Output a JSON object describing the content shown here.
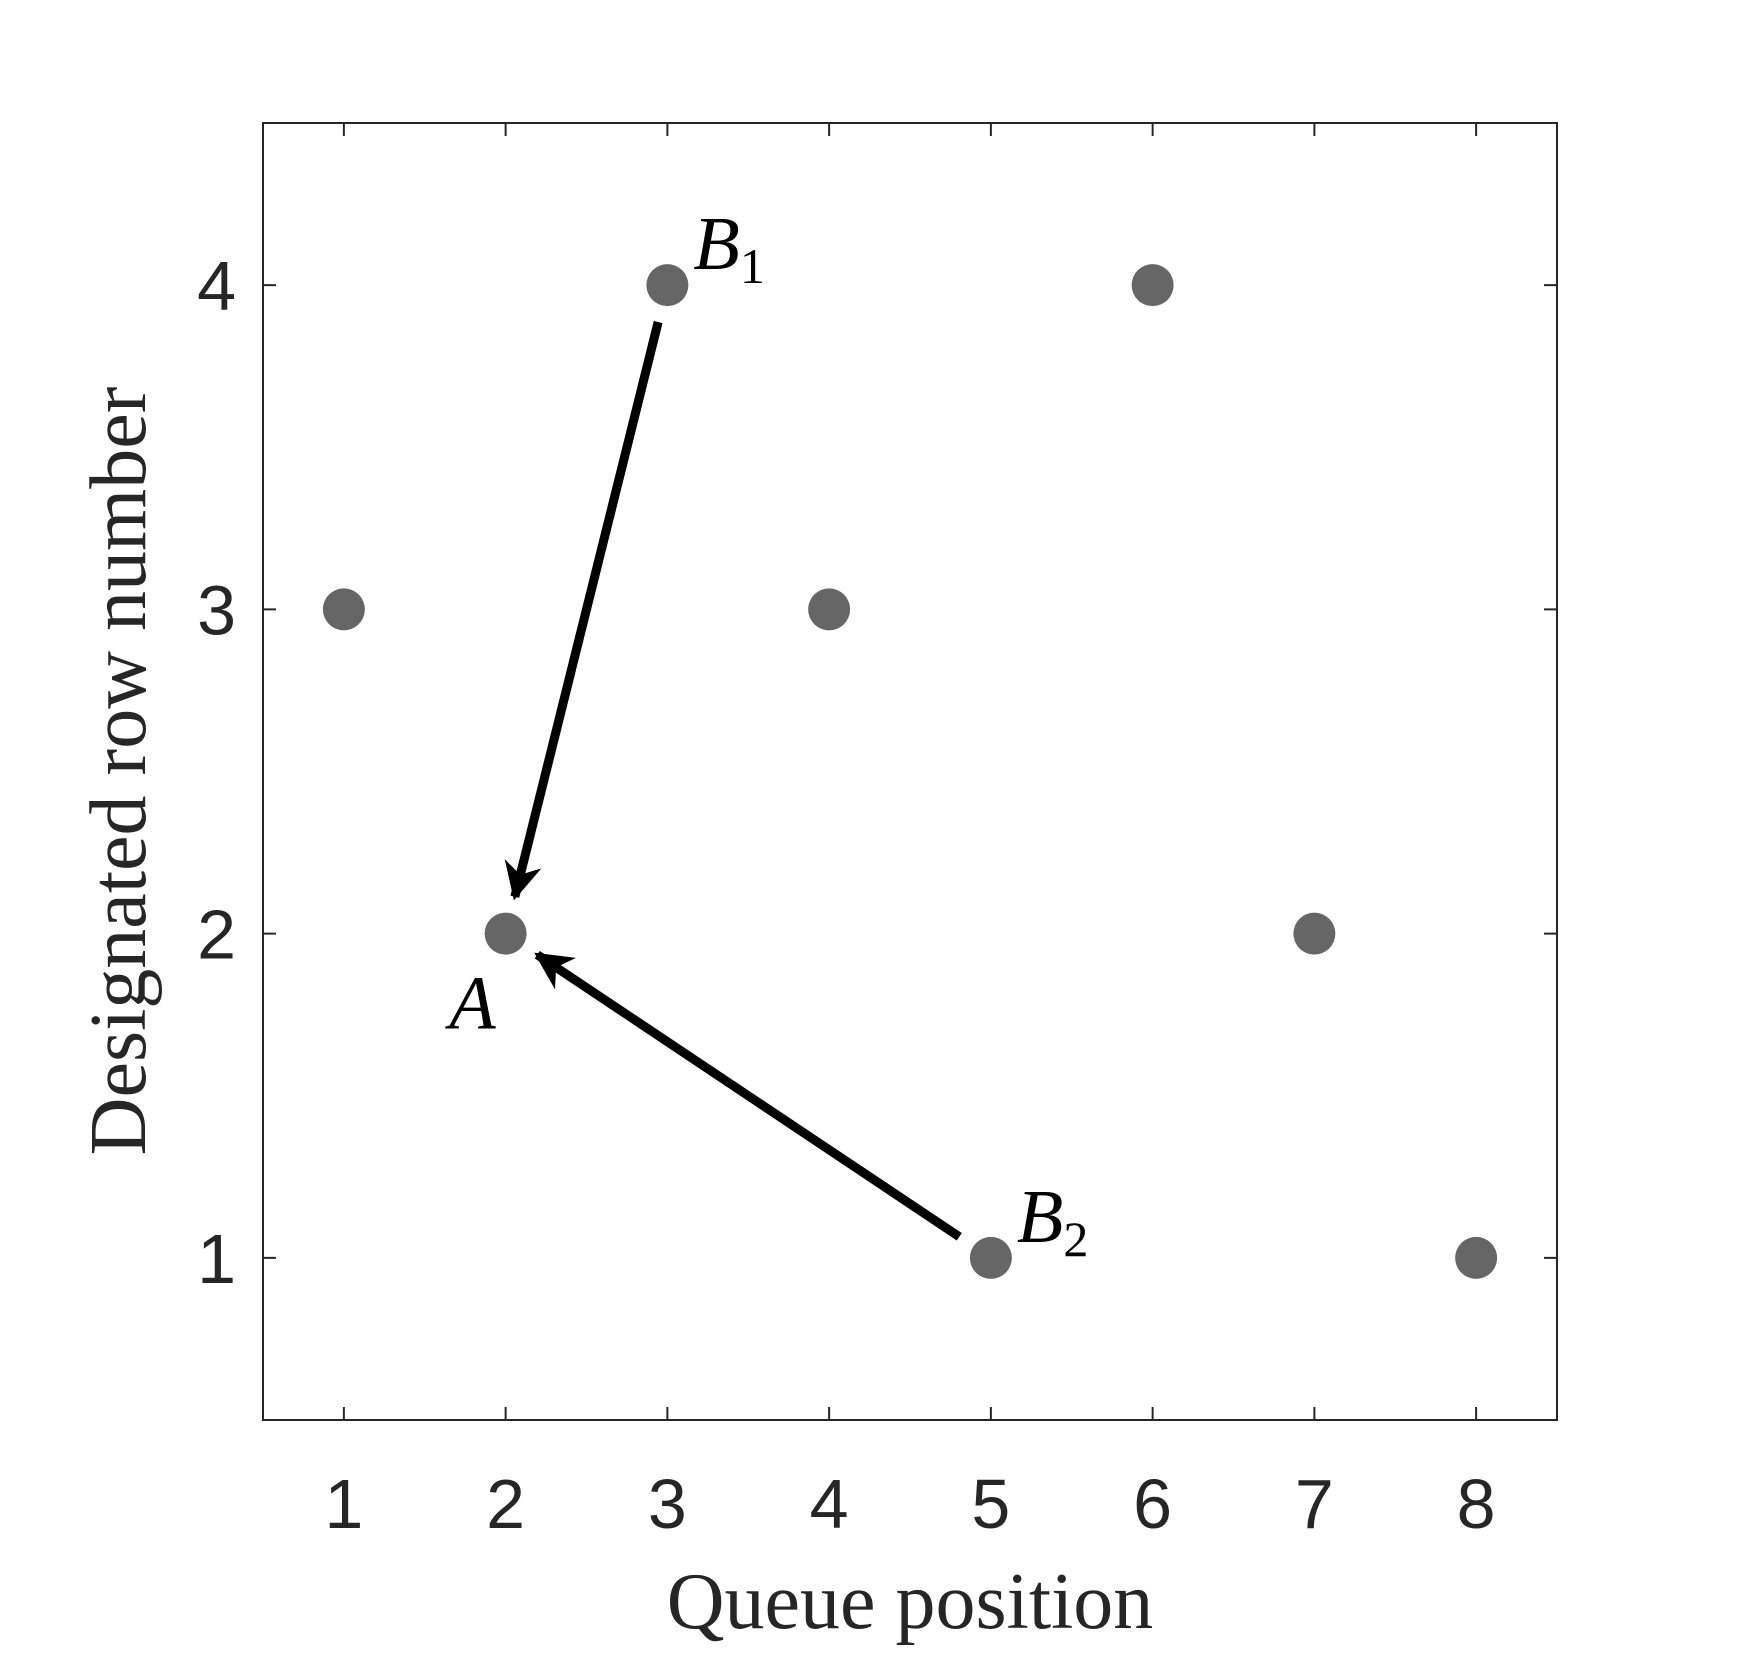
{
  "chart_data": {
    "type": "scatter",
    "xlabel": "Queue position",
    "ylabel": "Designated row number",
    "xlim": [
      0.5,
      8.5
    ],
    "ylim": [
      0.5,
      4.5
    ],
    "xticks": [
      1,
      2,
      3,
      4,
      5,
      6,
      7,
      8
    ],
    "yticks": [
      1,
      2,
      3,
      4
    ],
    "grid": false,
    "marker_color": "#666666",
    "points": [
      {
        "x": 1,
        "y": 3
      },
      {
        "x": 2,
        "y": 2
      },
      {
        "x": 3,
        "y": 4
      },
      {
        "x": 4,
        "y": 3
      },
      {
        "x": 5,
        "y": 1
      },
      {
        "x": 6,
        "y": 4
      },
      {
        "x": 7,
        "y": 2
      },
      {
        "x": 8,
        "y": 1
      }
    ],
    "annotations": [
      {
        "base": "B",
        "sub": "1",
        "x": 3,
        "y": 4,
        "position": "upper-right"
      },
      {
        "base": "A",
        "sub": "",
        "x": 2,
        "y": 2,
        "position": "lower-left"
      },
      {
        "base": "B",
        "sub": "2",
        "x": 5,
        "y": 1,
        "position": "upper-right"
      }
    ],
    "arrows": [
      {
        "from": [
          3,
          4
        ],
        "to": [
          2,
          2
        ]
      },
      {
        "from": [
          5,
          1
        ],
        "to": [
          2,
          2
        ]
      }
    ]
  }
}
